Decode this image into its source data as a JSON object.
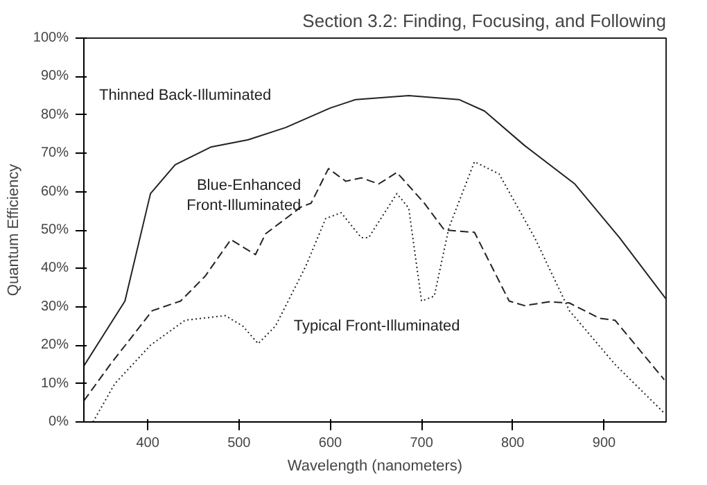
{
  "chart_data": {
    "type": "line",
    "title": "Section 3.2: Finding, Focusing, and Following",
    "xlabel": "Wavelength (nanometers)",
    "ylabel": "Quantum Efficiency",
    "xlim": [
      330,
      968
    ],
    "ylim": [
      0,
      100
    ],
    "xticks": [
      400,
      500,
      600,
      700,
      800,
      900
    ],
    "yticks": [
      {
        "value": 0,
        "label": "0%"
      },
      {
        "value": 10,
        "label": "10%"
      },
      {
        "value": 20,
        "label": "20%"
      },
      {
        "value": 30,
        "label": "30%"
      },
      {
        "value": 40,
        "label": "40%"
      },
      {
        "value": 50,
        "label": "50%"
      },
      {
        "value": 60,
        "label": "60%"
      },
      {
        "value": 70,
        "label": "70%"
      },
      {
        "value": 80,
        "label": "80%"
      },
      {
        "value": 90,
        "label": "90%"
      },
      {
        "value": 100,
        "label": "100%"
      }
    ],
    "grid": false,
    "marker": "none",
    "series": [
      {
        "name": "Thinned Back-Illuminated",
        "color": "#222222",
        "line_style": "solid",
        "x": [
          330,
          375,
          403,
          430,
          469,
          510,
          551,
          600,
          628,
          686,
          741,
          769,
          813,
          868,
          917,
          968
        ],
        "values": [
          14.6,
          31.5,
          59.5,
          67,
          71.6,
          73.5,
          76.7,
          81.8,
          84,
          85,
          84,
          81,
          72,
          62,
          48,
          32
        ]
      },
      {
        "name": "Blue-Enhanced\nFront-Illuminated",
        "color": "#222222",
        "line_style": "dashed",
        "x": [
          330,
          359,
          405,
          436,
          463,
          491,
          518,
          529,
          568,
          579,
          598,
          617,
          634,
          653,
          673,
          703,
          725,
          758,
          796,
          813,
          840,
          862,
          895,
          912,
          966
        ],
        "values": [
          5.5,
          15,
          29,
          31.5,
          38,
          47.5,
          43.6,
          49,
          56,
          57,
          66,
          62.7,
          63.6,
          62,
          65,
          57,
          50,
          49.4,
          31.5,
          30.3,
          31.3,
          31,
          27,
          26.5,
          11
        ]
      },
      {
        "name": "Typical Front-Illuminated",
        "color": "#222222",
        "line_style": "dotted",
        "x": [
          340,
          364,
          403,
          441,
          485,
          504,
          521,
          540,
          573,
          595,
          612,
          634,
          642,
          673,
          686,
          700,
          714,
          730,
          758,
          785,
          824,
          862,
          912,
          966
        ],
        "values": [
          0,
          10,
          20,
          26.5,
          27.7,
          25,
          20.4,
          25,
          40.5,
          53,
          54.5,
          48,
          48,
          59.5,
          55.7,
          31.5,
          32.8,
          50.6,
          67.8,
          64.6,
          48,
          29,
          15,
          2.3
        ]
      }
    ]
  }
}
